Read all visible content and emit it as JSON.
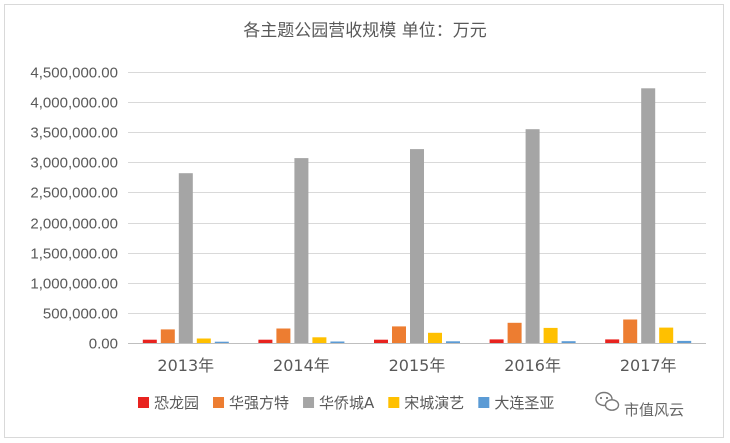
{
  "chart_data": {
    "type": "bar",
    "title": "各主题公园营收规模    单位：万元",
    "categories": [
      "2013年",
      "2014年",
      "2015年",
      "2016年",
      "2017年"
    ],
    "ylim": [
      0,
      4500000
    ],
    "yticks": [
      0,
      500000,
      1000000,
      1500000,
      2000000,
      2500000,
      3000000,
      3500000,
      4000000,
      4500000
    ],
    "ytick_labels": [
      "0.00",
      "500,000.00",
      "1,000,000.00",
      "1,500,000.00",
      "2,000,000.00",
      "2,500,000.00",
      "3,000,000.00",
      "3,500,000.00",
      "4,000,000.00",
      "4,500,000.00"
    ],
    "grid": true,
    "legend_position": "bottom",
    "series": [
      {
        "name": "恐龙园",
        "color": "#e8231f",
        "values": [
          55000,
          55000,
          55000,
          60000,
          60000
        ]
      },
      {
        "name": "华强方特",
        "color": "#ed7d31",
        "values": [
          225000,
          240000,
          275000,
          335000,
          390000
        ]
      },
      {
        "name": "华侨城A",
        "color": "#a5a5a5",
        "values": [
          2820000,
          3070000,
          3220000,
          3550000,
          4230000
        ]
      },
      {
        "name": "宋城演艺",
        "color": "#ffc000",
        "values": [
          75000,
          95000,
          170000,
          250000,
          255000
        ]
      },
      {
        "name": "大连圣亚",
        "color": "#5b9bd5",
        "values": [
          22000,
          25000,
          28000,
          30000,
          35000
        ]
      }
    ]
  },
  "watermark": {
    "icon": "wechat-icon",
    "text": "市值风云"
  }
}
